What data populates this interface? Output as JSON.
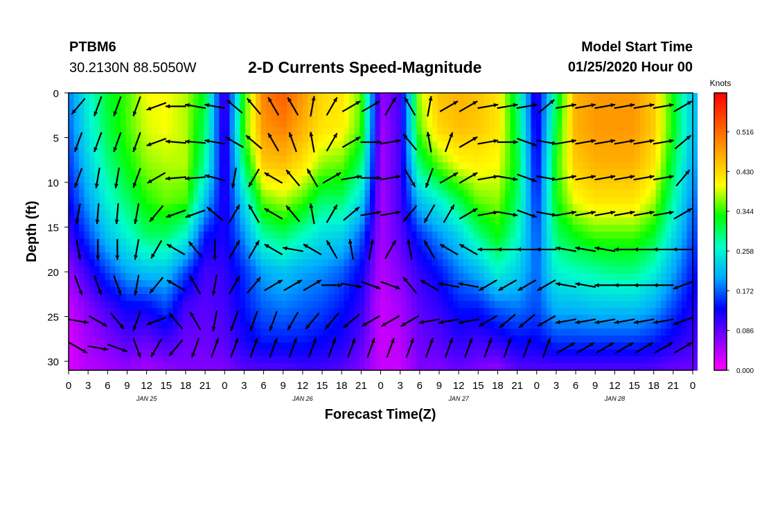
{
  "header": {
    "station": "PTBM6",
    "coords": "30.2130N 88.5050W",
    "title": "2-D Currents Speed-Magnitude",
    "model_start_label": "Model Start Time",
    "model_start_value": "01/25/2020 Hour 00"
  },
  "chart_data": {
    "type": "heatmap",
    "title": "2-D Currents Speed-Magnitude",
    "xlabel": "Forecast Time(Z)",
    "ylabel": "Depth (ft)",
    "x_range_hours": [
      0,
      96
    ],
    "x_ticks": [
      "0",
      "3",
      "6",
      "9",
      "12",
      "15",
      "18",
      "21",
      "0",
      "3",
      "6",
      "9",
      "12",
      "15",
      "18",
      "21",
      "0",
      "3",
      "6",
      "9",
      "12",
      "15",
      "18",
      "21",
      "0",
      "3",
      "6",
      "9",
      "12",
      "15",
      "18",
      "21",
      "0"
    ],
    "day_labels": [
      "JAN 25",
      "JAN 26",
      "JAN 27",
      "JAN 28"
    ],
    "ylim": [
      31,
      0
    ],
    "y_ticks": [
      0,
      5,
      10,
      15,
      20,
      25,
      30
    ],
    "colorbar": {
      "unit": "Knots",
      "ticks": [
        "0.516",
        "0.430",
        "0.344",
        "0.258",
        "0.172",
        "0.086",
        "0.000"
      ],
      "tick_values": [
        0.516,
        0.43,
        0.344,
        0.258,
        0.172,
        0.086,
        0.0
      ],
      "range": [
        0.0,
        0.6
      ],
      "colors": [
        "#ff00ff",
        "#8800ff",
        "#0000ff",
        "#00aaff",
        "#00ffcc",
        "#00ff00",
        "#ffff00",
        "#ffaa00",
        "#ff5500",
        "#ff0000"
      ]
    },
    "depths_ft": [
      0,
      4,
      8,
      12,
      16,
      20,
      24,
      28,
      31
    ],
    "time_hours": [
      0,
      3,
      6,
      9,
      12,
      15,
      18,
      21,
      24,
      27,
      30,
      33,
      36,
      39,
      42,
      45,
      48,
      51,
      54,
      57,
      60,
      63,
      66,
      69,
      72,
      75,
      78,
      81,
      84,
      87,
      90,
      93,
      96
    ],
    "speed_profiles": [
      [
        0.18,
        0.17,
        0.15,
        0.13,
        0.1,
        0.06,
        0.03,
        0.02,
        0.02
      ],
      [
        0.26,
        0.25,
        0.23,
        0.2,
        0.16,
        0.11,
        0.07,
        0.05,
        0.04
      ],
      [
        0.32,
        0.31,
        0.29,
        0.26,
        0.22,
        0.16,
        0.1,
        0.07,
        0.05
      ],
      [
        0.35,
        0.35,
        0.33,
        0.3,
        0.26,
        0.2,
        0.13,
        0.09,
        0.06
      ],
      [
        0.4,
        0.39,
        0.37,
        0.34,
        0.3,
        0.22,
        0.13,
        0.08,
        0.05
      ],
      [
        0.4,
        0.4,
        0.38,
        0.36,
        0.3,
        0.22,
        0.16,
        0.1,
        0.06
      ],
      [
        0.38,
        0.38,
        0.38,
        0.35,
        0.26,
        0.16,
        0.1,
        0.08,
        0.07
      ],
      [
        0.32,
        0.3,
        0.28,
        0.22,
        0.14,
        0.1,
        0.09,
        0.08,
        0.07
      ],
      [
        0.08,
        0.09,
        0.1,
        0.11,
        0.12,
        0.11,
        0.1,
        0.09,
        0.07
      ],
      [
        0.34,
        0.35,
        0.3,
        0.24,
        0.19,
        0.15,
        0.14,
        0.12,
        0.09
      ],
      [
        0.5,
        0.48,
        0.44,
        0.36,
        0.28,
        0.2,
        0.17,
        0.14,
        0.09
      ],
      [
        0.53,
        0.5,
        0.45,
        0.38,
        0.3,
        0.22,
        0.18,
        0.14,
        0.09
      ],
      [
        0.48,
        0.46,
        0.42,
        0.35,
        0.27,
        0.2,
        0.17,
        0.14,
        0.1
      ],
      [
        0.43,
        0.42,
        0.37,
        0.3,
        0.24,
        0.19,
        0.16,
        0.13,
        0.1
      ],
      [
        0.42,
        0.41,
        0.36,
        0.3,
        0.23,
        0.17,
        0.14,
        0.12,
        0.09
      ],
      [
        0.36,
        0.35,
        0.3,
        0.24,
        0.17,
        0.13,
        0.11,
        0.09,
        0.07
      ],
      [
        0.06,
        0.05,
        0.05,
        0.05,
        0.05,
        0.04,
        0.03,
        0.03,
        0.03
      ],
      [
        0.1,
        0.1,
        0.1,
        0.1,
        0.09,
        0.07,
        0.05,
        0.04,
        0.03
      ],
      [
        0.38,
        0.36,
        0.3,
        0.22,
        0.15,
        0.11,
        0.09,
        0.08,
        0.07
      ],
      [
        0.45,
        0.43,
        0.36,
        0.26,
        0.19,
        0.14,
        0.11,
        0.09,
        0.07
      ],
      [
        0.46,
        0.45,
        0.4,
        0.31,
        0.23,
        0.18,
        0.14,
        0.11,
        0.08
      ],
      [
        0.45,
        0.44,
        0.41,
        0.36,
        0.29,
        0.21,
        0.14,
        0.1,
        0.07
      ],
      [
        0.42,
        0.42,
        0.4,
        0.37,
        0.33,
        0.26,
        0.17,
        0.11,
        0.06
      ],
      [
        0.3,
        0.31,
        0.32,
        0.3,
        0.27,
        0.23,
        0.18,
        0.13,
        0.09
      ],
      [
        0.1,
        0.11,
        0.12,
        0.14,
        0.16,
        0.17,
        0.16,
        0.13,
        0.09
      ],
      [
        0.3,
        0.32,
        0.34,
        0.33,
        0.3,
        0.26,
        0.21,
        0.15,
        0.09
      ],
      [
        0.46,
        0.46,
        0.44,
        0.4,
        0.33,
        0.27,
        0.21,
        0.15,
        0.09
      ],
      [
        0.48,
        0.48,
        0.46,
        0.42,
        0.35,
        0.28,
        0.22,
        0.15,
        0.09
      ],
      [
        0.48,
        0.48,
        0.46,
        0.42,
        0.35,
        0.29,
        0.22,
        0.15,
        0.09
      ],
      [
        0.48,
        0.48,
        0.46,
        0.42,
        0.35,
        0.29,
        0.22,
        0.15,
        0.09
      ],
      [
        0.44,
        0.44,
        0.42,
        0.38,
        0.32,
        0.26,
        0.2,
        0.14,
        0.09
      ],
      [
        0.33,
        0.33,
        0.31,
        0.28,
        0.24,
        0.2,
        0.16,
        0.12,
        0.08
      ],
      [
        0.22,
        0.22,
        0.2,
        0.18,
        0.16,
        0.14,
        0.12,
        0.1,
        0.08
      ]
    ],
    "vector_depths_ft": [
      1.5,
      5.5,
      9.5,
      13.5,
      17.5,
      21.5,
      25.5,
      28.5
    ],
    "vector_times_hours": [
      1.5,
      4.5,
      7.5,
      10.5,
      13.5,
      16.5,
      19.5,
      22.5,
      25.5,
      28.5,
      31.5,
      34.5,
      37.5,
      40.5,
      43.5,
      46.5,
      49.5,
      52.5,
      55.5,
      58.5,
      61.5,
      64.5,
      67.5,
      70.5,
      73.5,
      76.5,
      79.5,
      82.5,
      85.5,
      88.5,
      91.5,
      94.5
    ],
    "vector_directions_deg": [
      [
        220,
        200,
        200,
        200,
        250,
        270,
        280,
        280,
        310,
        320,
        330,
        330,
        10,
        30,
        60,
        60,
        30,
        330,
        10,
        60,
        60,
        80,
        80,
        80,
        50,
        80,
        80,
        80,
        80,
        80,
        80,
        60
      ],
      [
        200,
        200,
        200,
        200,
        250,
        275,
        275,
        280,
        300,
        310,
        330,
        340,
        350,
        30,
        60,
        90,
        80,
        320,
        350,
        20,
        60,
        80,
        90,
        110,
        100,
        80,
        80,
        80,
        80,
        80,
        80,
        50
      ],
      [
        200,
        190,
        190,
        200,
        240,
        265,
        265,
        285,
        190,
        210,
        300,
        320,
        330,
        60,
        80,
        90,
        80,
        150,
        200,
        60,
        60,
        80,
        100,
        110,
        100,
        80,
        80,
        80,
        80,
        80,
        80,
        40
      ],
      [
        190,
        185,
        185,
        190,
        220,
        250,
        250,
        310,
        30,
        330,
        300,
        320,
        350,
        30,
        50,
        80,
        80,
        220,
        210,
        30,
        60,
        80,
        100,
        110,
        100,
        80,
        80,
        80,
        80,
        80,
        80,
        60
      ],
      [
        170,
        180,
        180,
        190,
        210,
        300,
        320,
        180,
        30,
        30,
        300,
        280,
        300,
        330,
        350,
        10,
        30,
        350,
        330,
        300,
        300,
        270,
        270,
        270,
        270,
        280,
        280,
        280,
        270,
        270,
        270,
        270
      ],
      [
        160,
        160,
        160,
        190,
        220,
        300,
        330,
        190,
        30,
        40,
        60,
        60,
        60,
        90,
        100,
        110,
        110,
        320,
        300,
        280,
        280,
        240,
        240,
        240,
        240,
        280,
        280,
        270,
        270,
        270,
        270,
        250
      ],
      [
        100,
        120,
        140,
        200,
        250,
        320,
        330,
        190,
        200,
        200,
        200,
        210,
        220,
        220,
        230,
        240,
        240,
        240,
        260,
        260,
        260,
        240,
        230,
        230,
        240,
        260,
        260,
        260,
        260,
        260,
        260,
        250
      ],
      [
        120,
        100,
        110,
        160,
        210,
        220,
        200,
        20,
        20,
        20,
        20,
        20,
        20,
        20,
        20,
        20,
        20,
        20,
        20,
        20,
        20,
        20,
        20,
        20,
        20,
        60,
        60,
        60,
        60,
        60,
        60,
        60
      ]
    ],
    "grid": false,
    "legend": "colorbar-right"
  }
}
